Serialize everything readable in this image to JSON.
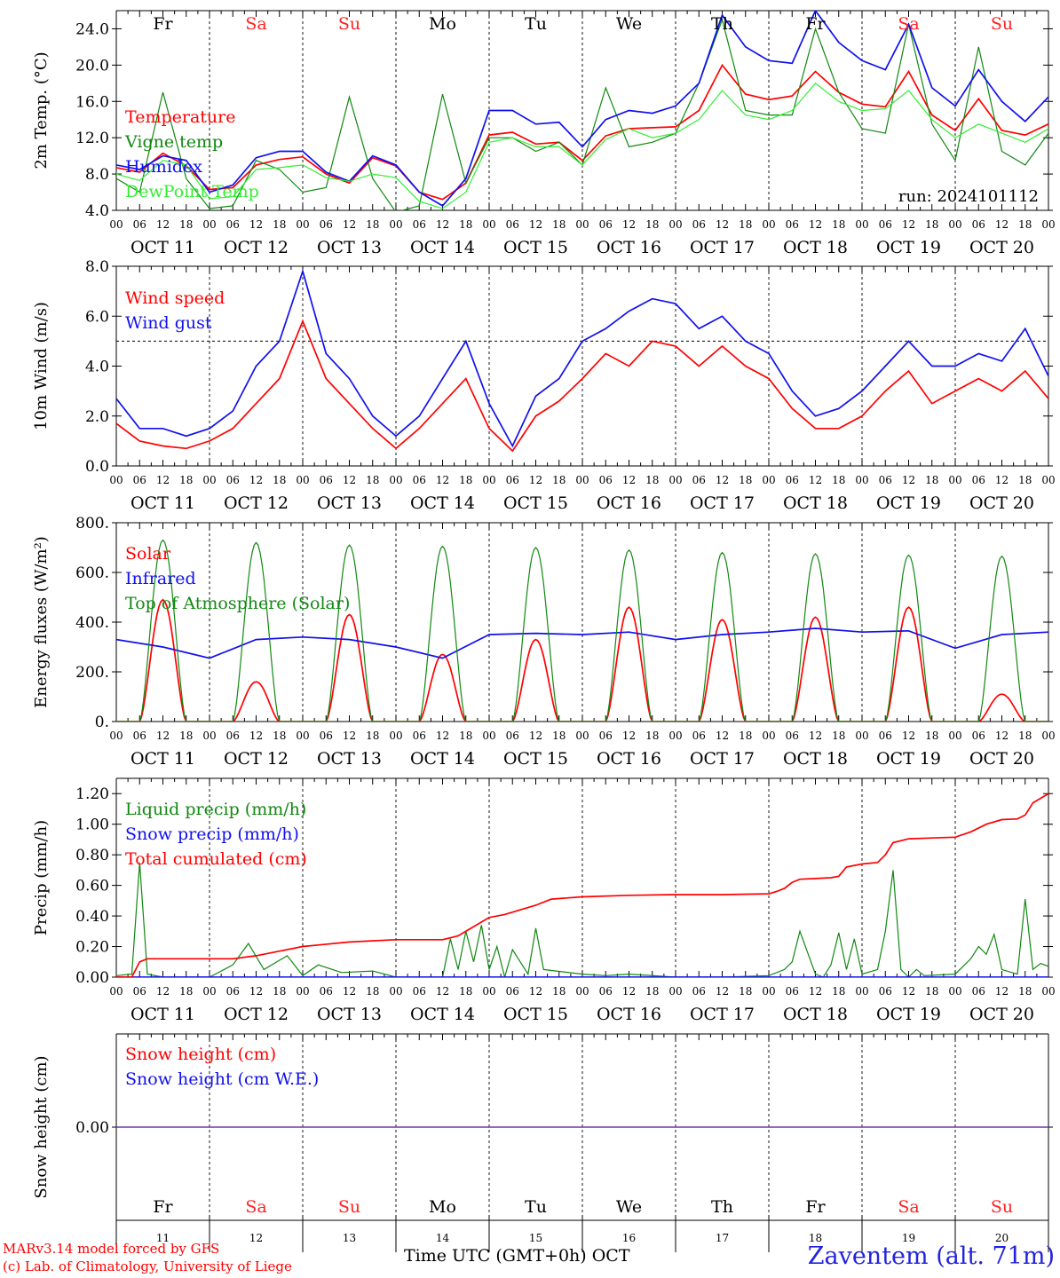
{
  "colors": {
    "red": "#ff0000",
    "green": "#118811",
    "blue": "#1010ee",
    "lightgreen": "#33ee33",
    "purple": "#7733aa",
    "weekday": "#000000",
    "weekend": "#ff2222",
    "station": "#2222e0"
  },
  "days": {
    "weekdays": [
      "Fr",
      "Sa",
      "Su",
      "Mo",
      "Tu",
      "We",
      "Th",
      "Fr",
      "Sa",
      "Su"
    ],
    "weekend_flags": [
      false,
      true,
      true,
      false,
      false,
      false,
      false,
      false,
      true,
      true
    ],
    "dates": [
      "OCT 11",
      "OCT 12",
      "OCT 13",
      "OCT 14",
      "OCT 15",
      "OCT 16",
      "OCT 17",
      "OCT 18",
      "OCT 19",
      "OCT 20"
    ],
    "day_numbers": [
      "11",
      "12",
      "13",
      "14",
      "15",
      "16",
      "17",
      "18",
      "19",
      "20"
    ],
    "hour_ticks": [
      "00",
      "06",
      "12",
      "18"
    ],
    "final_hour_tick": "00"
  },
  "footer": {
    "credit_line1": "MARv3.14 model forced by GFS",
    "credit_line2": "(c) Lab. of Climatology, University of Liege",
    "xaxis_title": "Time UTC (GMT+0h) OCT",
    "station": "Zaventem (alt. 71m)"
  },
  "chart_data": [
    {
      "type": "line",
      "ylabel": "2m Temp. (°C)",
      "ylim": [
        4,
        26
      ],
      "yticks": [
        "4.0",
        "8.0",
        "12.0",
        "16.0",
        "20.0",
        "24.0"
      ],
      "annotation": "run: 2024101112",
      "x_unit": "hours since OCT 11 00 UTC",
      "series": [
        {
          "name": "Temperature",
          "color": "red",
          "x": [
            0,
            6,
            12,
            18,
            24,
            30,
            36,
            42,
            48,
            54,
            60,
            66,
            72,
            78,
            84,
            90,
            96,
            102,
            108,
            114,
            120,
            126,
            132,
            138,
            144,
            150,
            156,
            162,
            168,
            174,
            180,
            186,
            192,
            198,
            204,
            210,
            216,
            222,
            228,
            234,
            240
          ],
          "y": [
            8.7,
            8.2,
            10.3,
            8.9,
            6.3,
            6.5,
            9.0,
            9.6,
            9.9,
            8.0,
            7.0,
            9.8,
            8.9,
            6.0,
            5.2,
            7.0,
            12.3,
            12.6,
            11.3,
            11.5,
            9.5,
            12.2,
            13.0,
            13.1,
            13.2,
            15.0,
            20.0,
            16.8,
            16.2,
            16.6,
            19.3,
            17.0,
            15.7,
            15.4,
            19.3,
            14.5,
            12.8,
            16.3,
            12.8,
            12.3,
            13.5
          ]
        },
        {
          "name": "Vigne temp",
          "color": "green",
          "x": [
            0,
            6,
            12,
            18,
            24,
            30,
            36,
            42,
            48,
            54,
            60,
            66,
            72,
            78,
            84,
            90,
            96,
            102,
            108,
            114,
            120,
            126,
            132,
            138,
            144,
            150,
            156,
            162,
            168,
            174,
            180,
            186,
            192,
            198,
            204,
            210,
            216,
            222,
            228,
            234,
            240
          ],
          "y": [
            7.5,
            6.0,
            17.0,
            7.5,
            4.2,
            4.5,
            9.5,
            8.5,
            6.0,
            6.5,
            16.5,
            7.5,
            3.8,
            4.5,
            16.8,
            7.0,
            12.0,
            12.0,
            10.5,
            11.5,
            9.0,
            17.5,
            11.0,
            11.5,
            12.5,
            18.0,
            25.0,
            15.0,
            14.5,
            14.5,
            24.0,
            17.0,
            13.0,
            12.5,
            24.5,
            13.5,
            9.5,
            22.0,
            10.5,
            9.0,
            12.5
          ]
        },
        {
          "name": "Humidex",
          "color": "blue",
          "x": [
            0,
            6,
            12,
            18,
            24,
            30,
            36,
            42,
            48,
            54,
            60,
            66,
            72,
            78,
            84,
            90,
            96,
            102,
            108,
            114,
            120,
            126,
            132,
            138,
            144,
            150,
            156,
            162,
            168,
            174,
            180,
            186,
            192,
            198,
            204,
            210,
            216,
            222,
            228,
            234,
            240
          ],
          "y": [
            9.0,
            8.5,
            10.0,
            9.5,
            6.0,
            6.8,
            9.8,
            10.5,
            10.5,
            8.2,
            7.2,
            10.0,
            9.0,
            6.0,
            4.5,
            7.5,
            15.0,
            15.0,
            13.5,
            13.7,
            11.0,
            14.0,
            15.0,
            14.7,
            15.5,
            18.0,
            25.5,
            22.0,
            20.5,
            20.2,
            26.0,
            22.5,
            20.5,
            19.5,
            24.5,
            17.5,
            15.5,
            19.5,
            16.0,
            13.8,
            16.5
          ]
        },
        {
          "name": "DewPoint Temp",
          "color": "lightgreen",
          "x": [
            0,
            6,
            12,
            18,
            24,
            30,
            36,
            42,
            48,
            54,
            60,
            66,
            72,
            78,
            84,
            90,
            96,
            102,
            108,
            114,
            120,
            126,
            132,
            138,
            144,
            150,
            156,
            162,
            168,
            174,
            180,
            186,
            192,
            198,
            204,
            210,
            216,
            222,
            228,
            234,
            240
          ],
          "y": [
            8.0,
            7.3,
            9.5,
            9.0,
            5.3,
            5.5,
            8.5,
            8.7,
            9.0,
            7.6,
            7.2,
            8.0,
            7.6,
            5.0,
            4.2,
            6.0,
            11.5,
            12.0,
            11.0,
            11.0,
            9.0,
            11.8,
            13.0,
            12.0,
            12.5,
            14.0,
            17.2,
            14.5,
            14.0,
            15.0,
            18.0,
            16.0,
            15.0,
            15.2,
            17.2,
            14.0,
            12.0,
            13.5,
            12.5,
            11.5,
            13.0
          ]
        }
      ]
    },
    {
      "type": "line",
      "ylabel": "10m Wind (m/s)",
      "ylim": [
        0,
        8
      ],
      "yticks": [
        "0.0",
        "2.0",
        "4.0",
        "6.0",
        "8.0"
      ],
      "reference_line": 5,
      "x_unit": "hours since OCT 11 00 UTC",
      "series": [
        {
          "name": "Wind speed",
          "color": "red",
          "x": [
            0,
            6,
            12,
            18,
            24,
            30,
            36,
            42,
            48,
            54,
            60,
            66,
            72,
            78,
            84,
            90,
            96,
            102,
            108,
            114,
            120,
            126,
            132,
            138,
            144,
            150,
            156,
            162,
            168,
            174,
            180,
            186,
            192,
            198,
            204,
            210,
            216,
            222,
            228,
            234,
            240
          ],
          "y": [
            1.7,
            1.0,
            0.8,
            0.7,
            1.0,
            1.5,
            2.5,
            3.5,
            5.8,
            3.5,
            2.5,
            1.5,
            0.7,
            1.5,
            2.5,
            3.5,
            1.5,
            0.6,
            2.0,
            2.6,
            3.5,
            4.5,
            4.0,
            5.0,
            4.8,
            4.0,
            4.8,
            4.0,
            3.5,
            2.3,
            1.5,
            1.5,
            2.0,
            3.0,
            3.8,
            2.5,
            3.0,
            3.5,
            3.0,
            3.8,
            2.7
          ]
        },
        {
          "name": "Wind gust",
          "color": "blue",
          "x": [
            0,
            6,
            12,
            18,
            24,
            30,
            36,
            42,
            48,
            54,
            60,
            66,
            72,
            78,
            84,
            90,
            96,
            102,
            108,
            114,
            120,
            126,
            132,
            138,
            144,
            150,
            156,
            162,
            168,
            174,
            180,
            186,
            192,
            198,
            204,
            210,
            216,
            222,
            228,
            234,
            240
          ],
          "y": [
            2.7,
            1.5,
            1.5,
            1.2,
            1.5,
            2.2,
            4.0,
            5.0,
            7.8,
            4.5,
            3.5,
            2.0,
            1.2,
            2.0,
            3.5,
            5.0,
            2.5,
            0.8,
            2.8,
            3.5,
            5.0,
            5.5,
            6.2,
            6.7,
            6.5,
            5.5,
            6.0,
            5.0,
            4.5,
            3.0,
            2.0,
            2.3,
            3.0,
            4.0,
            5.0,
            4.0,
            4.0,
            4.5,
            4.2,
            5.5,
            3.6
          ]
        }
      ]
    },
    {
      "type": "line",
      "ylabel": "Energy fluxes (W/m²)",
      "ylim": [
        0,
        800
      ],
      "yticks": [
        "0.",
        "200.",
        "400.",
        "600.",
        "800."
      ],
      "x_unit": "hours since OCT 11 00 UTC",
      "series": [
        {
          "name": "Solar",
          "color": "red",
          "daily_peak_values": [
            490,
            160,
            430,
            270,
            330,
            460,
            410,
            420,
            460,
            110
          ],
          "daytime_hours": [
            6,
            18
          ]
        },
        {
          "name": "Infrared",
          "color": "blue",
          "x": [
            0,
            12,
            24,
            36,
            48,
            60,
            72,
            84,
            96,
            108,
            120,
            132,
            144,
            156,
            168,
            180,
            192,
            204,
            216,
            228,
            240
          ],
          "y": [
            330,
            300,
            255,
            330,
            340,
            330,
            300,
            255,
            350,
            355,
            350,
            360,
            330,
            350,
            360,
            375,
            360,
            365,
            295,
            350,
            360
          ]
        },
        {
          "name": "Top of Atmosphere (Solar)",
          "color": "green",
          "daily_peak_values": [
            730,
            720,
            710,
            705,
            700,
            690,
            680,
            675,
            670,
            665
          ],
          "daytime_hours": [
            6,
            18
          ]
        }
      ]
    },
    {
      "type": "line",
      "ylabel": "Precip (mm/h)",
      "ylim": [
        0,
        1.3
      ],
      "yticks": [
        "0.00",
        "0.20",
        "0.40",
        "0.60",
        "0.80",
        "1.00",
        "1.20"
      ],
      "x_unit": "hours since OCT 11 00 UTC",
      "series": [
        {
          "name": "Liquid precip (mm/h)",
          "color": "green",
          "x": [
            0,
            4,
            6,
            8,
            12,
            24,
            30,
            34,
            38,
            44,
            48,
            52,
            58,
            66,
            72,
            84,
            86,
            88,
            90,
            92,
            94,
            96,
            98,
            100,
            102,
            104,
            106,
            108,
            110,
            120,
            126,
            132,
            144,
            156,
            168,
            172,
            174,
            176,
            180,
            182,
            184,
            186,
            188,
            190,
            192,
            196,
            198,
            200,
            202,
            204,
            206,
            208,
            216,
            220,
            222,
            224,
            226,
            228,
            232,
            234,
            236,
            238,
            240
          ],
          "y": [
            0.01,
            0.02,
            0.75,
            0.02,
            0.0,
            0.0,
            0.08,
            0.22,
            0.05,
            0.14,
            0.01,
            0.08,
            0.03,
            0.04,
            0.0,
            0.0,
            0.25,
            0.05,
            0.3,
            0.1,
            0.34,
            0.05,
            0.2,
            0.0,
            0.18,
            0.1,
            0.02,
            0.32,
            0.05,
            0.02,
            0.01,
            0.02,
            0.0,
            0.0,
            0.01,
            0.05,
            0.1,
            0.3,
            0.02,
            0.0,
            0.08,
            0.29,
            0.05,
            0.25,
            0.02,
            0.05,
            0.3,
            0.7,
            0.05,
            0.0,
            0.05,
            0.01,
            0.02,
            0.12,
            0.2,
            0.15,
            0.28,
            0.05,
            0.02,
            0.51,
            0.05,
            0.09,
            0.07
          ]
        },
        {
          "name": "Snow precip (mm/h)",
          "color": "blue",
          "x": [
            0,
            240
          ],
          "y": [
            0,
            0
          ]
        },
        {
          "name": "Total cumulated (cm)",
          "color": "red",
          "x": [
            0,
            4,
            6,
            8,
            30,
            36,
            42,
            48,
            52,
            60,
            72,
            84,
            88,
            92,
            96,
            100,
            104,
            108,
            112,
            120,
            132,
            144,
            156,
            168,
            170,
            172,
            174,
            176,
            180,
            184,
            186,
            188,
            192,
            196,
            198,
            200,
            204,
            210,
            216,
            220,
            224,
            228,
            232,
            234,
            236,
            240
          ],
          "y": [
            0.0,
            0.0,
            0.1,
            0.12,
            0.12,
            0.14,
            0.17,
            0.2,
            0.21,
            0.23,
            0.245,
            0.245,
            0.27,
            0.33,
            0.39,
            0.41,
            0.44,
            0.47,
            0.51,
            0.525,
            0.535,
            0.54,
            0.54,
            0.545,
            0.56,
            0.58,
            0.62,
            0.64,
            0.645,
            0.65,
            0.66,
            0.72,
            0.74,
            0.75,
            0.8,
            0.88,
            0.905,
            0.91,
            0.915,
            0.95,
            1.0,
            1.03,
            1.035,
            1.06,
            1.14,
            1.2
          ]
        }
      ]
    },
    {
      "type": "line",
      "ylabel": "Snow height (cm)",
      "ylim": [
        -1,
        1
      ],
      "yticks": [
        "0.00"
      ],
      "x_unit": "hours since OCT 11 00 UTC",
      "series": [
        {
          "name": "Snow height (cm)",
          "color": "red",
          "x": [
            0,
            240
          ],
          "y": [
            0,
            0
          ]
        },
        {
          "name": "Snow height (cm W.E.)",
          "color": "blue",
          "x": [
            0,
            240
          ],
          "y": [
            0,
            0
          ]
        }
      ]
    }
  ]
}
